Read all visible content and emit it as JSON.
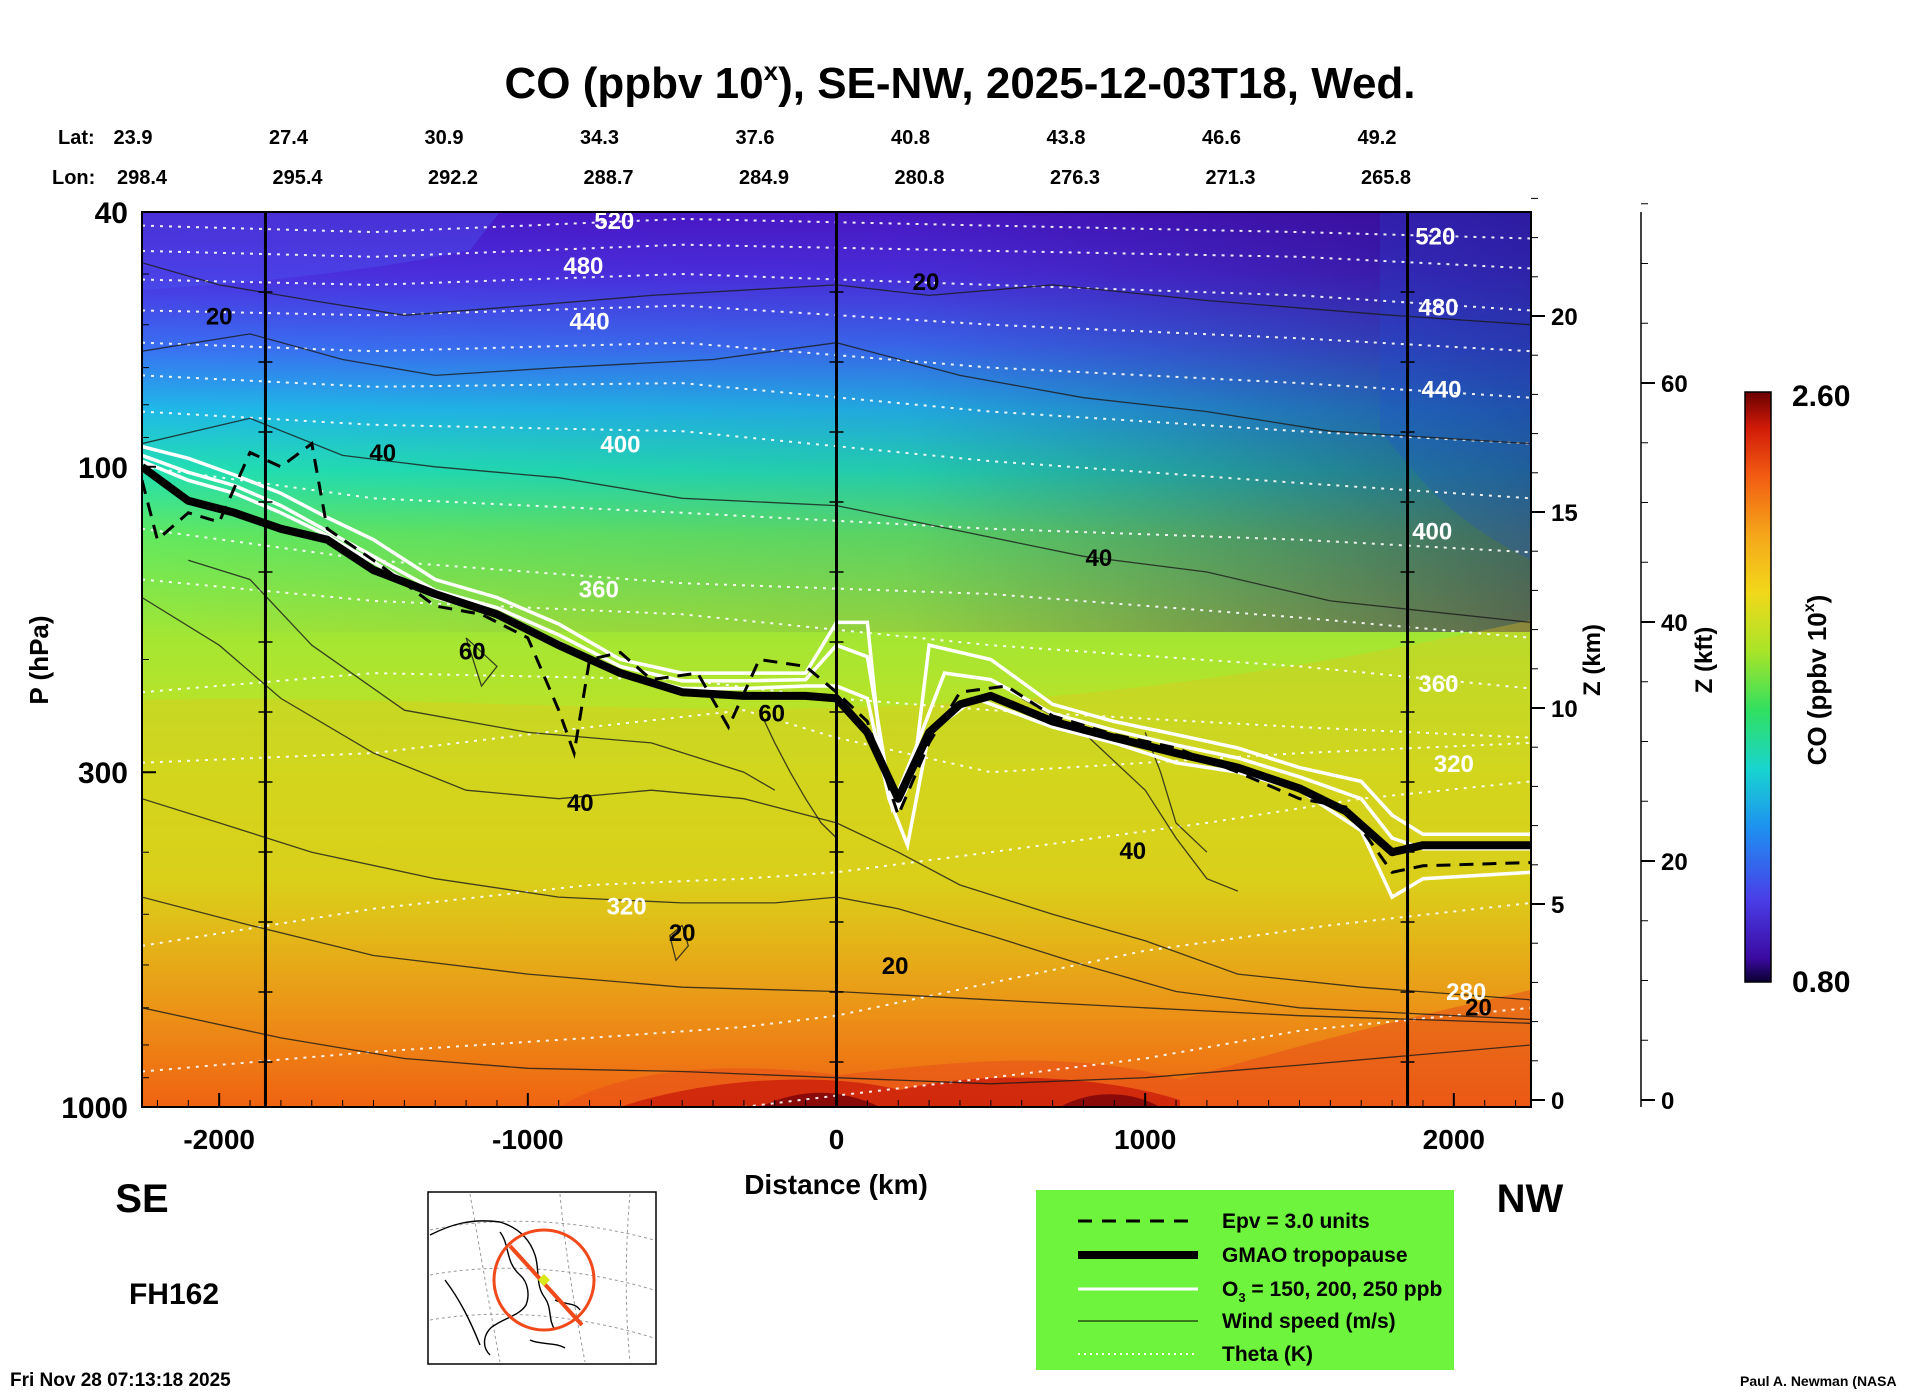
{
  "chart_data": {
    "type": "heatmap",
    "title": "CO (ppbv 10",
    "title_sup": "x",
    "title_rest": "), SE-NW, 2025-12-03T18, Wed.",
    "xlabel": "Distance (km)",
    "ylabel": "P (hPa)",
    "z_km_label": "Z (km)",
    "z_kft_label": "Z (kft)",
    "colorbar_label": "CO (ppbv 10",
    "colorbar_label_sup": "x",
    "colorbar_label_end": ")",
    "colorbar_range": [
      0.8,
      2.6
    ],
    "colorbar_ticks": [
      "2.60",
      "0.80"
    ],
    "xlim": [
      -2250,
      2250
    ],
    "x_ticks": [
      "-2000",
      "-1000",
      "0",
      "1000",
      "2000"
    ],
    "x_tick_values": [
      -2000,
      -1000,
      0,
      1000,
      2000
    ],
    "ylim_hpa": [
      1000,
      40
    ],
    "y_ticks": [
      "40",
      "100",
      "300",
      "1000"
    ],
    "y_tick_values": [
      40,
      100,
      300,
      1000
    ],
    "z_km_ticks": [
      "20",
      "15",
      "10",
      "5",
      "0"
    ],
    "z_km_values": [
      20,
      15,
      10,
      5,
      0
    ],
    "z_kft_ticks": [
      "60",
      "40",
      "20",
      "0"
    ],
    "z_kft_values": [
      60,
      40,
      20,
      0
    ],
    "lat_label": "Lat:",
    "lon_label": "Lon:",
    "lat": [
      "23.9",
      "27.4",
      "30.9",
      "34.3",
      "37.6",
      "40.8",
      "43.8",
      "46.6",
      "49.2"
    ],
    "lon": [
      "298.4",
      "295.4",
      "292.2",
      "288.7",
      "284.9",
      "280.8",
      "276.3",
      "271.3",
      "265.8"
    ],
    "left_end": "SE",
    "right_end": "NW",
    "theta_labels": [
      {
        "text": "520",
        "x": -720,
        "p": 42.5
      },
      {
        "text": "480",
        "x": -820,
        "p": 50
      },
      {
        "text": "440",
        "x": -800,
        "p": 61
      },
      {
        "text": "400",
        "x": -700,
        "p": 95
      },
      {
        "text": "360",
        "x": -770,
        "p": 160
      },
      {
        "text": "320",
        "x": -680,
        "p": 500
      },
      {
        "text": "520",
        "x": 1940,
        "p": 45
      },
      {
        "text": "480",
        "x": 1950,
        "p": 58
      },
      {
        "text": "440",
        "x": 1960,
        "p": 78
      },
      {
        "text": "400",
        "x": 1930,
        "p": 130
      },
      {
        "text": "360",
        "x": 1950,
        "p": 225
      },
      {
        "text": "320",
        "x": 2000,
        "p": 300
      },
      {
        "text": "280",
        "x": 2040,
        "p": 680
      }
    ],
    "wind_labels": [
      {
        "text": "20",
        "x": -2000,
        "p": 60
      },
      {
        "text": "20",
        "x": 290,
        "p": 53
      },
      {
        "text": "40",
        "x": -1470,
        "p": 98
      },
      {
        "text": "40",
        "x": 850,
        "p": 143
      },
      {
        "text": "60",
        "x": -1180,
        "p": 200
      },
      {
        "text": "60",
        "x": -210,
        "p": 250
      },
      {
        "text": "40",
        "x": -830,
        "p": 345
      },
      {
        "text": "40",
        "x": 960,
        "p": 410
      },
      {
        "text": "20",
        "x": -500,
        "p": 550
      },
      {
        "text": "20",
        "x": 190,
        "p": 620
      },
      {
        "text": "20",
        "x": 2080,
        "p": 720
      }
    ],
    "tropopause_p": [
      [
        -2250,
        100
      ],
      [
        -2100,
        113
      ],
      [
        -1950,
        118
      ],
      [
        -1800,
        125
      ],
      [
        -1650,
        130
      ],
      [
        -1500,
        145
      ],
      [
        -1300,
        158
      ],
      [
        -1100,
        170
      ],
      [
        -900,
        190
      ],
      [
        -700,
        210
      ],
      [
        -500,
        225
      ],
      [
        -300,
        228
      ],
      [
        -100,
        228
      ],
      [
        0,
        230
      ],
      [
        100,
        260
      ],
      [
        200,
        330
      ],
      [
        300,
        260
      ],
      [
        400,
        235
      ],
      [
        500,
        228
      ],
      [
        700,
        250
      ],
      [
        900,
        265
      ],
      [
        1100,
        280
      ],
      [
        1300,
        295
      ],
      [
        1500,
        318
      ],
      [
        1650,
        345
      ],
      [
        1800,
        400
      ],
      [
        1900,
        390
      ],
      [
        2250,
        390
      ]
    ],
    "o3_curves_p": [
      [
        [
          -2250,
          93
        ],
        [
          -2100,
          97
        ],
        [
          -1950,
          103
        ],
        [
          -1800,
          110
        ],
        [
          -1650,
          120
        ],
        [
          -1500,
          130
        ],
        [
          -1300,
          150
        ],
        [
          -1100,
          160
        ],
        [
          -900,
          176
        ],
        [
          -700,
          200
        ],
        [
          -500,
          210
        ],
        [
          -300,
          210
        ],
        [
          -100,
          210
        ],
        [
          0,
          175
        ],
        [
          100,
          175
        ],
        [
          150,
          300
        ],
        [
          200,
          340
        ],
        [
          250,
          300
        ],
        [
          300,
          190
        ],
        [
          500,
          200
        ],
        [
          700,
          235
        ],
        [
          900,
          250
        ],
        [
          1100,
          262
        ],
        [
          1300,
          275
        ],
        [
          1500,
          295
        ],
        [
          1700,
          310
        ],
        [
          1800,
          350
        ],
        [
          1900,
          375
        ],
        [
          2250,
          375
        ]
      ],
      [
        [
          -2250,
          96
        ],
        [
          -2100,
          102
        ],
        [
          -1950,
          107
        ],
        [
          -1800,
          115
        ],
        [
          -1650,
          126
        ],
        [
          -1500,
          138
        ],
        [
          -1300,
          156
        ],
        [
          -1100,
          166
        ],
        [
          -900,
          183
        ],
        [
          -700,
          205
        ],
        [
          -500,
          216
        ],
        [
          -300,
          216
        ],
        [
          -100,
          215
        ],
        [
          0,
          190
        ],
        [
          100,
          198
        ],
        [
          180,
          340
        ],
        [
          250,
          280
        ],
        [
          350,
          210
        ],
        [
          500,
          215
        ],
        [
          700,
          243
        ],
        [
          900,
          258
        ],
        [
          1100,
          272
        ],
        [
          1300,
          285
        ],
        [
          1500,
          305
        ],
        [
          1700,
          330
        ],
        [
          1800,
          380
        ],
        [
          1900,
          395
        ],
        [
          2250,
          395
        ]
      ],
      [
        [
          -2250,
          98
        ],
        [
          -2100,
          105
        ],
        [
          -1950,
          110
        ],
        [
          -1800,
          118
        ],
        [
          -1650,
          128
        ],
        [
          -1500,
          141
        ],
        [
          -1300,
          160
        ],
        [
          -1100,
          170
        ],
        [
          -900,
          188
        ],
        [
          -700,
          210
        ],
        [
          -500,
          222
        ],
        [
          -300,
          222
        ],
        [
          -100,
          220
        ],
        [
          0,
          220
        ],
        [
          100,
          230
        ],
        [
          170,
          330
        ],
        [
          230,
          390
        ],
        [
          300,
          260
        ],
        [
          450,
          230
        ],
        [
          700,
          255
        ],
        [
          900,
          270
        ],
        [
          1100,
          290
        ],
        [
          1300,
          300
        ],
        [
          1500,
          320
        ],
        [
          1700,
          370
        ],
        [
          1800,
          470
        ],
        [
          1900,
          440
        ],
        [
          2250,
          430
        ]
      ]
    ],
    "epv_p": [
      [
        -2250,
        105
      ],
      [
        -2200,
        130
      ],
      [
        -2100,
        118
      ],
      [
        -2000,
        122
      ],
      [
        -1900,
        95
      ],
      [
        -1800,
        100
      ],
      [
        -1700,
        92
      ],
      [
        -1650,
        125
      ],
      [
        -1500,
        140
      ],
      [
        -1300,
        165
      ],
      [
        -1150,
        170
      ],
      [
        -1000,
        185
      ],
      [
        -900,
        240
      ],
      [
        -850,
        280
      ],
      [
        -800,
        200
      ],
      [
        -700,
        195
      ],
      [
        -600,
        215
      ],
      [
        -450,
        210
      ],
      [
        -350,
        255
      ],
      [
        -250,
        200
      ],
      [
        -100,
        205
      ],
      [
        0,
        225
      ],
      [
        100,
        250
      ],
      [
        200,
        350
      ],
      [
        300,
        270
      ],
      [
        400,
        225
      ],
      [
        550,
        220
      ],
      [
        700,
        245
      ],
      [
        900,
        262
      ],
      [
        1100,
        275
      ],
      [
        1300,
        300
      ],
      [
        1500,
        330
      ],
      [
        1650,
        340
      ],
      [
        1800,
        430
      ],
      [
        1900,
        420
      ],
      [
        2250,
        415
      ]
    ],
    "legend": [
      {
        "label": "Epv = 3.0 units",
        "style": "dashed"
      },
      {
        "label": "GMAO tropopause",
        "style": "thick"
      },
      {
        "label": "O",
        "label_sub": "3",
        "label_rest": " = 150, 200, 250 ppb",
        "style": "white"
      },
      {
        "label": "Wind speed (m/s)",
        "style": "thin"
      },
      {
        "label": "Theta (K)",
        "style": "dotted"
      }
    ],
    "colors": {
      "legend_bg": "#6ef43c",
      "low": "#1a0066",
      "high": "#7a0000"
    }
  },
  "forecast_hour": "FH162",
  "timestamp": "Fri Nov 28 07:13:18 2025",
  "credit": "Paul A. Newman (NASA"
}
